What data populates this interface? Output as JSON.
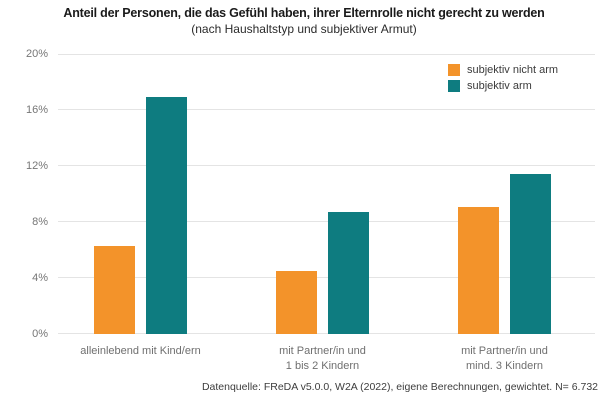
{
  "title": "Anteil der Personen, die das Gefühl haben, ihrer Elternrolle nicht gerecht zu werden",
  "subtitle": "(nach Haushaltstyp und subjektiver Armut)",
  "source": "Datenquelle: FReDA v5.0.0, W2A (2022), eigene Berechnungen, gewichtet. N= 6.732",
  "chart_data": {
    "type": "bar",
    "categories": [
      [
        "alleinlebend mit Kind/ern"
      ],
      [
        "mit Partner/in und",
        "1 bis 2 Kindern"
      ],
      [
        "mit Partner/in und",
        "mind. 3 Kindern"
      ]
    ],
    "series": [
      {
        "name": "subjektiv nicht arm",
        "color": "#F3932A",
        "values": [
          6.3,
          4.5,
          9.1
        ]
      },
      {
        "name": "subjektiv arm",
        "color": "#0E7C80",
        "values": [
          16.9,
          8.7,
          11.4
        ]
      }
    ],
    "y_ticks": [
      "0%",
      "4%",
      "8%",
      "12%",
      "16%",
      "20%"
    ],
    "ylim": [
      0,
      20
    ],
    "grid": true,
    "legend_position": "top-right",
    "colors": {
      "grid": "#e4e4e4",
      "axis_text": "#767676"
    }
  }
}
